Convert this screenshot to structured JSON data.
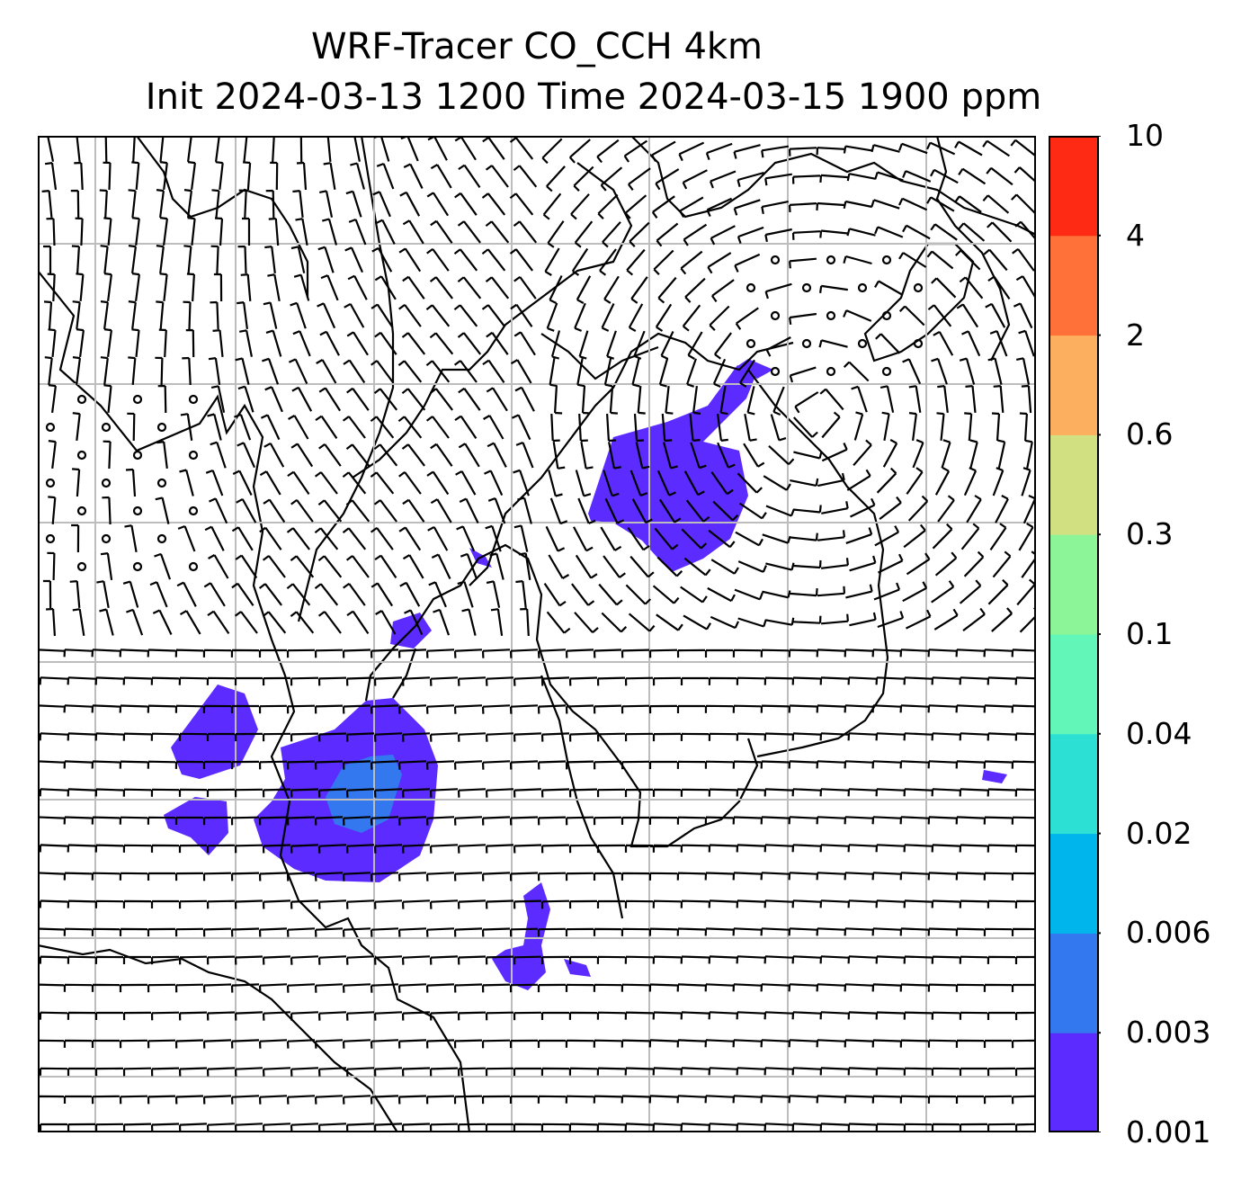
{
  "title": {
    "line1": "WRF-Tracer CO_CCH 4km",
    "line2": "Init 2024-03-13 1200 Time 2024-03-15 1900 ppm"
  },
  "colorbar": {
    "tick_labels": [
      "0.001",
      "0.003",
      "0.006",
      "0.02",
      "0.04",
      "0.1",
      "0.3",
      "0.6",
      "2",
      "4",
      "10"
    ],
    "colors": [
      "#5b2bff",
      "#3478f0",
      "#00b4ec",
      "#2de0d4",
      "#62f7b8",
      "#8cf598",
      "#d1e080",
      "#fcb05f",
      "#ff7139",
      "#ff2a13"
    ]
  },
  "map": {
    "gridline_color": "#bdbdbd",
    "coastline_color": "#000000",
    "barb_color": "#000000"
  }
}
